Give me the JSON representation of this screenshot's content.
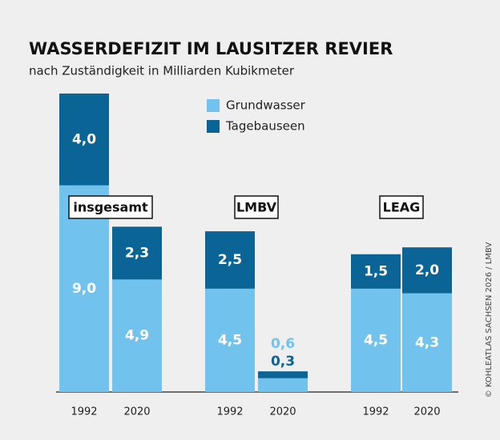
{
  "chart_data": {
    "type": "grouped-stacked-bar",
    "title": "WASSERDEFIZIT IM LAUSITZER REVIER",
    "subtitle": "nach Zuständigkeit in Milliarden Kubikmeter",
    "groups": [
      "insgesamt",
      "LMBV",
      "LEAG"
    ],
    "categories": [
      "1992",
      "2020",
      "1992",
      "2020",
      "1992",
      "2020"
    ],
    "series": [
      {
        "name": "Grundwasser",
        "color": "#72c2ee",
        "values": [
          9.0,
          4.9,
          4.5,
          0.6,
          4.5,
          4.3
        ],
        "value_labels": [
          "9,0",
          "4,9",
          "4,5",
          "0,6",
          "4,5",
          "4,3"
        ]
      },
      {
        "name": "Tagebauseen",
        "color": "#0a6496",
        "values": [
          4.0,
          2.3,
          2.5,
          0.3,
          1.5,
          2.0
        ],
        "value_labels": [
          "4,0",
          "2,3",
          "2,5",
          "0,3",
          "1,5",
          "2,0"
        ]
      }
    ],
    "source": "© KOHLEATLAS SACHSEN 2026 / LMBV"
  }
}
